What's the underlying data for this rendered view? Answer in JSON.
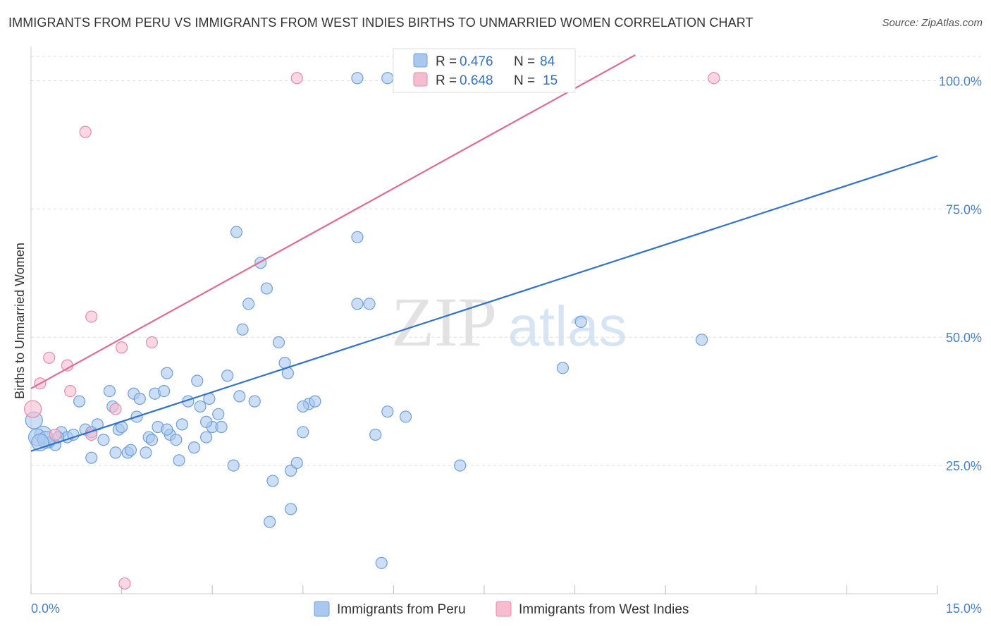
{
  "title": "IMMIGRANTS FROM PERU VS IMMIGRANTS FROM WEST INDIES BIRTHS TO UNMARRIED WOMEN CORRELATION CHART",
  "source": "Source: ZipAtlas.com",
  "watermark": {
    "zip": "ZIP",
    "atlas": "atlas"
  },
  "colors": {
    "peru_fill": "#a9c8ef",
    "peru_stroke": "#6f9fd8",
    "peru_line": "#2f72cf",
    "wi_fill": "#f6bdd0",
    "wi_stroke": "#e98aa8",
    "wi_line": "#e36a91",
    "tick_label": "#4a80c8",
    "grid": "#dddddd"
  },
  "legend_top": {
    "rows": [
      {
        "r_label": "R =",
        "r_value": "0.476",
        "n_label": "N =",
        "n_value": "84"
      },
      {
        "r_label": "R =",
        "r_value": "0.648",
        "n_label": "N =",
        "n_value": "15"
      }
    ]
  },
  "legend_bottom": {
    "items": [
      "Immigrants from Peru",
      "Immigrants from West Indies"
    ]
  },
  "chart_data": {
    "type": "scatter",
    "ylabel": "Births to Unmarried Women",
    "xlim": [
      0,
      15
    ],
    "ylim": [
      0,
      105
    ],
    "x_tick_labels": [
      "0.0%",
      "15.0%"
    ],
    "y_ticks": [
      25,
      50,
      75,
      100
    ],
    "y_tick_labels": [
      "25.0%",
      "50.0%",
      "75.0%",
      "100.0%"
    ],
    "grid": true,
    "legend_placement": "bottom",
    "series": [
      {
        "name": "Immigrants from Peru",
        "R": 0.476,
        "N": 84,
        "trend": {
          "x": [
            0,
            15
          ],
          "y": [
            27.8,
            85.3
          ]
        },
        "points": [
          [
            0.05,
            33.8
          ],
          [
            0.2,
            31.0
          ],
          [
            0.3,
            29.5
          ],
          [
            0.4,
            29.0
          ],
          [
            0.5,
            31.5
          ],
          [
            0.6,
            30.5
          ],
          [
            0.7,
            31.0
          ],
          [
            0.8,
            37.5
          ],
          [
            0.9,
            32.0
          ],
          [
            1.0,
            26.5
          ],
          [
            1.1,
            33.0
          ],
          [
            1.2,
            30.0
          ],
          [
            1.3,
            39.5
          ],
          [
            1.35,
            36.5
          ],
          [
            1.4,
            27.5
          ],
          [
            1.45,
            32.0
          ],
          [
            1.5,
            32.5
          ],
          [
            1.6,
            27.5
          ],
          [
            1.65,
            28.0
          ],
          [
            1.7,
            39.0
          ],
          [
            1.75,
            34.5
          ],
          [
            1.8,
            38.0
          ],
          [
            1.9,
            27.5
          ],
          [
            1.95,
            30.5
          ],
          [
            2.0,
            30.0
          ],
          [
            2.05,
            39.0
          ],
          [
            2.1,
            32.5
          ],
          [
            2.2,
            39.5
          ],
          [
            2.25,
            43.0
          ],
          [
            2.3,
            31.0
          ],
          [
            2.4,
            30.0
          ],
          [
            2.45,
            26.0
          ],
          [
            2.5,
            33.0
          ],
          [
            2.6,
            37.5
          ],
          [
            2.7,
            28.5
          ],
          [
            2.75,
            41.5
          ],
          [
            2.8,
            36.5
          ],
          [
            2.9,
            30.5
          ],
          [
            2.95,
            38.0
          ],
          [
            3.0,
            32.5
          ],
          [
            3.1,
            35.0
          ],
          [
            3.15,
            32.5
          ],
          [
            3.25,
            42.5
          ],
          [
            3.35,
            25.0
          ],
          [
            3.45,
            38.5
          ],
          [
            3.5,
            51.5
          ],
          [
            3.6,
            56.5
          ],
          [
            3.8,
            64.5
          ],
          [
            3.7,
            37.5
          ],
          [
            3.9,
            59.5
          ],
          [
            4.1,
            49.0
          ],
          [
            4.2,
            45.0
          ],
          [
            4.25,
            43.0
          ],
          [
            4.0,
            22.0
          ],
          [
            4.3,
            24.0
          ],
          [
            4.4,
            25.5
          ],
          [
            4.5,
            31.5
          ],
          [
            4.6,
            37.0
          ],
          [
            4.7,
            37.5
          ],
          [
            5.4,
            56.5
          ],
          [
            5.6,
            56.5
          ],
          [
            5.7,
            31.0
          ],
          [
            5.9,
            35.5
          ],
          [
            6.2,
            34.5
          ],
          [
            7.1,
            25.0
          ],
          [
            8.8,
            44.0
          ],
          [
            9.1,
            53.0
          ],
          [
            11.1,
            49.5
          ],
          [
            3.4,
            70.5
          ],
          [
            5.4,
            69.5
          ],
          [
            0.1,
            30.5
          ],
          [
            0.25,
            30.0
          ],
          [
            1.0,
            31.5
          ],
          [
            2.25,
            32.0
          ],
          [
            2.9,
            33.5
          ],
          [
            4.5,
            36.5
          ],
          [
            3.95,
            14.0
          ],
          [
            4.3,
            16.5
          ],
          [
            5.8,
            6.0
          ],
          [
            5.4,
            100.5
          ],
          [
            5.9,
            100.5
          ],
          [
            7.0,
            100.5
          ],
          [
            0.15,
            29.5
          ],
          [
            0.45,
            30.5
          ]
        ]
      },
      {
        "name": "Immigrants from West Indies",
        "R": 0.648,
        "N": 15,
        "trend": {
          "x": [
            0,
            10.0
          ],
          "y": [
            40.0,
            105.0
          ]
        },
        "points": [
          [
            0.03,
            36.0
          ],
          [
            0.15,
            41.0
          ],
          [
            0.3,
            46.0
          ],
          [
            0.4,
            31.0
          ],
          [
            0.6,
            44.5
          ],
          [
            0.65,
            39.5
          ],
          [
            0.9,
            90.0
          ],
          [
            1.0,
            31.0
          ],
          [
            1.0,
            54.0
          ],
          [
            1.4,
            36.0
          ],
          [
            1.5,
            48.0
          ],
          [
            2.0,
            49.0
          ],
          [
            1.55,
            2.0
          ],
          [
            4.4,
            100.5
          ],
          [
            11.3,
            100.5
          ]
        ]
      }
    ]
  }
}
